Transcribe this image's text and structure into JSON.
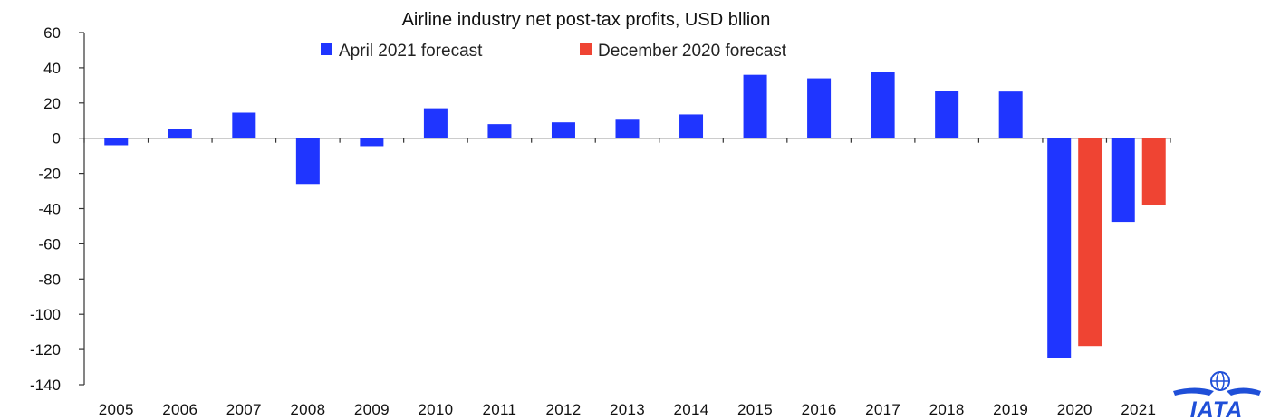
{
  "chart_data": {
    "type": "bar",
    "title": "Airline industry net post-tax profits, USD bllion",
    "categories": [
      "2005",
      "2006",
      "2007",
      "2008",
      "2009",
      "2010",
      "2011",
      "2012",
      "2013",
      "2014",
      "2015",
      "2016",
      "2017",
      "2018",
      "2019",
      "2020",
      "2021"
    ],
    "series": [
      {
        "name": "April 2021 forecast",
        "color": "#1f35ff",
        "values": [
          -4,
          5,
          14.5,
          -26,
          -4.5,
          17,
          8,
          9,
          10.5,
          13.5,
          36,
          34,
          37.5,
          27,
          26.5,
          -125,
          -47.5
        ]
      },
      {
        "name": "December 2020 forecast",
        "color": "#ef4433",
        "values": [
          null,
          null,
          null,
          null,
          null,
          null,
          null,
          null,
          null,
          null,
          null,
          null,
          null,
          null,
          null,
          -118,
          -38
        ]
      }
    ],
    "yticks": [
      60,
      40,
      20,
      0,
      -20,
      -40,
      -60,
      -80,
      -100,
      -120,
      -140
    ],
    "ylim": [
      -140,
      60
    ],
    "legend_position": "top",
    "grid": false
  },
  "logo": {
    "text": "IATA",
    "color": "#1f4fd8"
  }
}
